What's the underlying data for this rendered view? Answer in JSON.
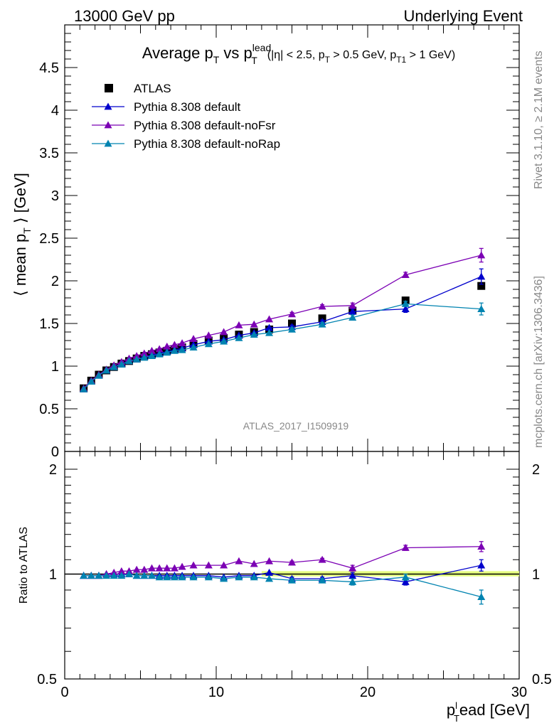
{
  "header": {
    "left": "13000 GeV pp",
    "right": "Underlying Event"
  },
  "side": {
    "rivet": "Rivet 3.1.10, ≥ 2.1M events",
    "mcplots": "mcplots.cern.ch [arXiv:1306.3436]"
  },
  "watermark": "ATLAS_2017_I1509919",
  "title": {
    "main_a": "Average p",
    "main_sub_a": "T",
    "main_b": " vs p",
    "main_sup_b": "lead",
    "main_sub_b": "T",
    "cuts_a": "(|η| < 2.5, p",
    "cuts_sub_a": "T",
    "cuts_b": " > 0.5 GeV, p",
    "cuts_sub_b": "T1",
    "cuts_c": " > 1 GeV)"
  },
  "colors": {
    "atlas": "#000000",
    "default": "#0000cc",
    "noFsr": "#7b00b4",
    "noRap": "#0083b0",
    "band": "#e6ff80"
  },
  "chart_data": [
    {
      "type": "scatter",
      "panel": "main",
      "ylabel": "⟨ mean p_T ⟩ [GeV]",
      "ylabel_parts": [
        "⟨ mean p",
        "T",
        " ⟩ [GeV]"
      ],
      "xlim": [
        0,
        30
      ],
      "ylim": [
        0,
        5
      ],
      "yticks": [
        0,
        0.5,
        1,
        1.5,
        2,
        2.5,
        3,
        3.5,
        4,
        4.5
      ],
      "ytick_labels": [
        "0",
        "0.5",
        "1",
        "1.5",
        "2",
        "2.5",
        "3",
        "3.5",
        "4",
        "4.5"
      ],
      "legend_position": "top-left",
      "x": [
        1.25,
        1.75,
        2.25,
        2.75,
        3.25,
        3.75,
        4.25,
        4.75,
        5.25,
        5.75,
        6.25,
        6.75,
        7.25,
        7.75,
        8.5,
        9.5,
        10.5,
        11.5,
        12.5,
        13.5,
        15.0,
        17.0,
        19.0,
        22.5,
        27.5
      ],
      "series": [
        {
          "name": "ATLAS",
          "marker": "square",
          "color": "#000000",
          "values": [
            0.74,
            0.83,
            0.9,
            0.95,
            0.99,
            1.03,
            1.06,
            1.09,
            1.12,
            1.14,
            1.16,
            1.18,
            1.2,
            1.22,
            1.26,
            1.3,
            1.33,
            1.37,
            1.4,
            1.43,
            1.5,
            1.56,
            1.65,
            1.77,
            1.94
          ]
        },
        {
          "name": "Pythia 8.308 default",
          "marker": "triangle",
          "color": "#0000cc",
          "values": [
            0.73,
            0.82,
            0.89,
            0.95,
            0.99,
            1.03,
            1.06,
            1.08,
            1.11,
            1.13,
            1.15,
            1.17,
            1.19,
            1.21,
            1.25,
            1.29,
            1.31,
            1.36,
            1.39,
            1.45,
            1.46,
            1.52,
            1.64,
            1.67,
            2.05
          ],
          "errors": [
            0,
            0,
            0,
            0,
            0,
            0,
            0,
            0,
            0,
            0,
            0,
            0,
            0,
            0,
            0,
            0,
            0,
            0,
            0,
            0,
            0.02,
            0.02,
            0.03,
            0.04,
            0.09
          ]
        },
        {
          "name": "Pythia 8.308 default-noFsr",
          "marker": "triangle",
          "color": "#7b00b4",
          "values": [
            0.74,
            0.83,
            0.9,
            0.96,
            1.01,
            1.05,
            1.09,
            1.12,
            1.15,
            1.18,
            1.2,
            1.23,
            1.25,
            1.27,
            1.32,
            1.36,
            1.4,
            1.48,
            1.49,
            1.55,
            1.61,
            1.7,
            1.71,
            2.07,
            2.3
          ],
          "errors": [
            0,
            0,
            0,
            0,
            0,
            0,
            0,
            0,
            0,
            0,
            0,
            0,
            0,
            0,
            0,
            0,
            0,
            0,
            0,
            0,
            0.02,
            0.02,
            0.03,
            0.03,
            0.08
          ]
        },
        {
          "name": "Pythia 8.308 default-noRap",
          "marker": "triangle",
          "color": "#0083b0",
          "values": [
            0.73,
            0.82,
            0.89,
            0.95,
            0.99,
            1.02,
            1.06,
            1.08,
            1.1,
            1.12,
            1.14,
            1.16,
            1.18,
            1.19,
            1.22,
            1.26,
            1.29,
            1.33,
            1.37,
            1.39,
            1.43,
            1.49,
            1.57,
            1.73,
            1.67
          ],
          "errors": [
            0,
            0,
            0,
            0,
            0,
            0,
            0,
            0,
            0,
            0,
            0,
            0,
            0,
            0,
            0,
            0,
            0,
            0,
            0,
            0,
            0.02,
            0.02,
            0.03,
            0.03,
            0.07
          ]
        }
      ]
    },
    {
      "type": "line",
      "panel": "ratio",
      "ylabel": "Ratio to ATLAS",
      "xlabel": "p_T^lead [GeV]",
      "xlabel_parts": [
        "p",
        "l",
        "T",
        "ead [GeV]"
      ],
      "xlim": [
        0,
        30
      ],
      "xticks": [
        0,
        10,
        20,
        30
      ],
      "xtick_labels": [
        "0",
        "10",
        "20",
        "30"
      ],
      "ylim": [
        0.5,
        2.25
      ],
      "yscale": "log",
      "yticks": [
        0.5,
        1,
        2
      ],
      "ytick_labels": [
        "0.5",
        "1",
        "2"
      ],
      "x": [
        1.25,
        1.75,
        2.25,
        2.75,
        3.25,
        3.75,
        4.25,
        4.75,
        5.25,
        5.75,
        6.25,
        6.75,
        7.25,
        7.75,
        8.5,
        9.5,
        10.5,
        11.5,
        12.5,
        13.5,
        15.0,
        17.0,
        19.0,
        22.5,
        27.5
      ],
      "series": [
        {
          "name": "Pythia 8.308 default",
          "color": "#0000cc",
          "values": [
            0.99,
            0.99,
            0.99,
            1.0,
            1.0,
            1.0,
            1.0,
            0.99,
            0.99,
            0.99,
            0.99,
            0.99,
            0.99,
            0.99,
            0.99,
            0.99,
            0.98,
            0.99,
            0.99,
            1.01,
            0.97,
            0.97,
            0.99,
            0.95,
            1.06
          ],
          "errors": [
            0,
            0,
            0,
            0,
            0,
            0,
            0,
            0,
            0,
            0,
            0,
            0,
            0,
            0,
            0,
            0,
            0,
            0,
            0,
            0,
            0.01,
            0.01,
            0.02,
            0.02,
            0.04
          ]
        },
        {
          "name": "Pythia 8.308 default-noFsr",
          "color": "#7b00b4",
          "values": [
            0.99,
            0.99,
            0.99,
            1.0,
            1.01,
            1.02,
            1.02,
            1.03,
            1.03,
            1.04,
            1.04,
            1.04,
            1.04,
            1.05,
            1.06,
            1.06,
            1.06,
            1.09,
            1.07,
            1.09,
            1.08,
            1.1,
            1.04,
            1.19,
            1.2
          ],
          "errors": [
            0,
            0,
            0,
            0,
            0,
            0,
            0,
            0,
            0,
            0,
            0,
            0,
            0,
            0,
            0,
            0,
            0,
            0,
            0,
            0,
            0.01,
            0.01,
            0.02,
            0.02,
            0.04
          ]
        },
        {
          "name": "Pythia 8.308 default-noRap",
          "color": "#0083b0",
          "values": [
            0.99,
            0.99,
            0.99,
            0.99,
            0.99,
            0.99,
            1.0,
            0.99,
            0.99,
            0.99,
            0.98,
            0.98,
            0.98,
            0.98,
            0.98,
            0.98,
            0.97,
            0.98,
            0.98,
            0.97,
            0.96,
            0.96,
            0.95,
            0.98,
            0.86
          ],
          "errors": [
            0,
            0,
            0,
            0,
            0,
            0,
            0,
            0,
            0,
            0,
            0,
            0,
            0,
            0,
            0,
            0,
            0,
            0,
            0,
            0,
            0.01,
            0.01,
            0.02,
            0.02,
            0.04
          ]
        }
      ],
      "band": {
        "x_start": 13,
        "x_end": 30,
        "lo": 0.985,
        "hi": 1.02
      }
    }
  ]
}
